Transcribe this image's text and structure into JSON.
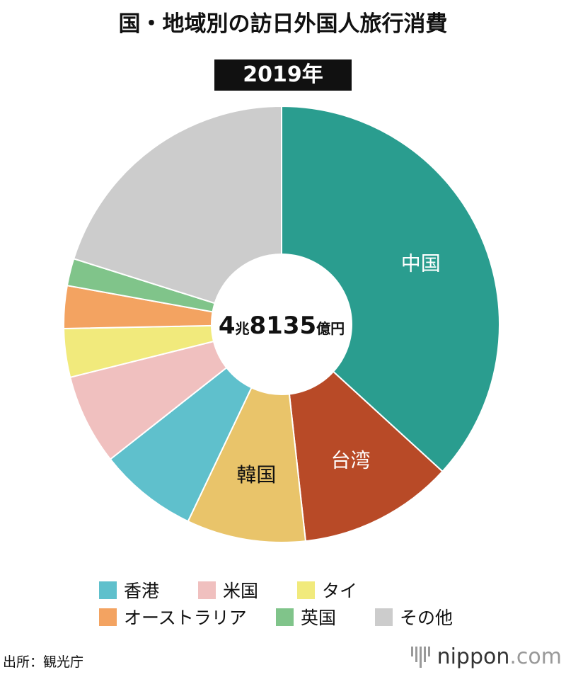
{
  "title": "国・地域別の訪日外国人旅行消費",
  "chart_data": {
    "type": "pie",
    "title": "国・地域別の訪日外国人旅行消費",
    "subtitle": "2019年",
    "center_label": {
      "num1": "4",
      "unit1": "兆",
      "num2": "8135",
      "unit2": "億円"
    },
    "unit": "億円",
    "total": 48135,
    "slices": [
      {
        "name": "中国",
        "value": 17704,
        "color": "#2a9d8f",
        "labeled": true,
        "label_color": "#ffffff"
      },
      {
        "name": "台湾",
        "value": 5517,
        "color": "#b84a27",
        "labeled": true,
        "label_color": "#ffffff"
      },
      {
        "name": "韓国",
        "value": 4247,
        "color": "#e9c46a",
        "labeled": true,
        "label_color": "#111111"
      },
      {
        "name": "香港",
        "value": 3525,
        "color": "#5fc0cc"
      },
      {
        "name": "米国",
        "value": 3228,
        "color": "#f0c0bf"
      },
      {
        "name": "タイ",
        "value": 1732,
        "color": "#f1ea7c"
      },
      {
        "name": "オーストラリア",
        "value": 1519,
        "color": "#f3a361"
      },
      {
        "name": "英国",
        "value": 970,
        "color": "#80c48a"
      },
      {
        "name": "その他",
        "value": 9693,
        "color": "#cccccc"
      }
    ],
    "legend": [
      "香港",
      "米国",
      "タイ",
      "オーストラリア",
      "英国",
      "その他"
    ]
  },
  "source": "出所：観光庁",
  "logo": {
    "main": "nippon",
    "suffix": ".com"
  }
}
